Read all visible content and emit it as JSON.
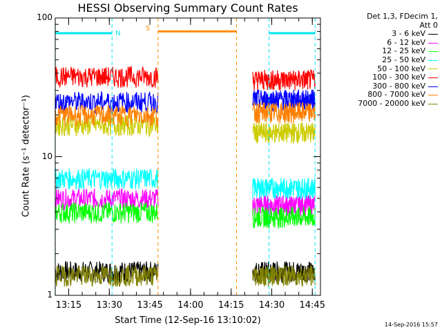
{
  "title": "HESSI Observing Summary Count Rates",
  "xlabel": "Start Time (12-Sep-16 13:10:02)",
  "ylabel": "Count Rate (s⁻¹ detector⁻¹)",
  "timestamp": "14-Sep-2016 15:57",
  "legend_header": [
    "Det 1,3, FDecim 1,",
    "Att 0"
  ],
  "annotations": {
    "n_label": "N",
    "s_label": "S"
  },
  "colors": {
    "axis": "#000000",
    "night_marker": "#00e5ee",
    "saa_marker": "#ff8c00"
  },
  "chart_data": {
    "type": "line",
    "ylog": true,
    "ylim": [
      1,
      100
    ],
    "yticks": [
      {
        "value": 1,
        "label": "1"
      },
      {
        "value": 10,
        "label": "10"
      },
      {
        "value": 100,
        "label": "100"
      }
    ],
    "xlim": [
      "13:10:02",
      "14:48:00"
    ],
    "xticks": [
      "13:15",
      "13:30",
      "13:45",
      "14:00",
      "14:15",
      "14:30",
      "14:45"
    ],
    "series": [
      {
        "name": "3 - 6 keV",
        "color": "#000000",
        "segments": [
          {
            "x": [
              "13:10",
              "13:48"
            ],
            "level": 1.5
          },
          {
            "x": [
              "14:23",
              "14:46"
            ],
            "level": 1.5
          }
        ]
      },
      {
        "name": "6 - 12 keV",
        "color": "#ff00ff",
        "segments": [
          {
            "x": [
              "13:10",
              "13:48"
            ],
            "level": 5.0
          },
          {
            "x": [
              "14:23",
              "14:46"
            ],
            "level": 4.5
          }
        ]
      },
      {
        "name": "12 - 25 keV",
        "color": "#00ff00",
        "segments": [
          {
            "x": [
              "13:10",
              "13:48"
            ],
            "level": 4.0
          },
          {
            "x": [
              "14:23",
              "14:46"
            ],
            "level": 3.7
          }
        ]
      },
      {
        "name": "25 - 50 keV",
        "color": "#00ffff",
        "segments": [
          {
            "x": [
              "13:10",
              "13:48"
            ],
            "level": 7.0
          },
          {
            "x": [
              "14:23",
              "14:46"
            ],
            "level": 6.0
          }
        ]
      },
      {
        "name": "50 - 100 keV",
        "color": "#cccc00",
        "segments": [
          {
            "x": [
              "13:10",
              "13:48"
            ],
            "level": 17
          },
          {
            "x": [
              "14:23",
              "14:46"
            ],
            "level": 15
          }
        ]
      },
      {
        "name": "100 - 300 keV",
        "color": "#ff0000",
        "segments": [
          {
            "x": [
              "13:10",
              "13:48"
            ],
            "level": 38
          },
          {
            "x": [
              "14:23",
              "14:46"
            ],
            "level": 36
          }
        ]
      },
      {
        "name": "300 - 800 keV",
        "color": "#0000ff",
        "segments": [
          {
            "x": [
              "13:10",
              "13:48"
            ],
            "level": 25
          },
          {
            "x": [
              "14:23",
              "14:46"
            ],
            "level": 26
          }
        ]
      },
      {
        "name": "800 - 7000 keV",
        "color": "#ff8000",
        "segments": [
          {
            "x": [
              "13:10",
              "13:48"
            ],
            "level": 20
          },
          {
            "x": [
              "14:23",
              "14:46"
            ],
            "level": 21
          }
        ]
      },
      {
        "name": "7000 - 20000 keV",
        "color": "#808000",
        "segments": [
          {
            "x": [
              "13:10",
              "13:48"
            ],
            "level": 1.4
          },
          {
            "x": [
              "14:23",
              "14:46"
            ],
            "level": 1.4
          }
        ]
      }
    ],
    "flags": {
      "night": [
        {
          "x": [
            "13:10",
            "13:31"
          ]
        },
        {
          "x": [
            "14:29",
            "14:46"
          ]
        }
      ],
      "saa": [
        {
          "x": [
            "13:48",
            "14:17"
          ],
          "level": 80
        }
      ]
    }
  }
}
